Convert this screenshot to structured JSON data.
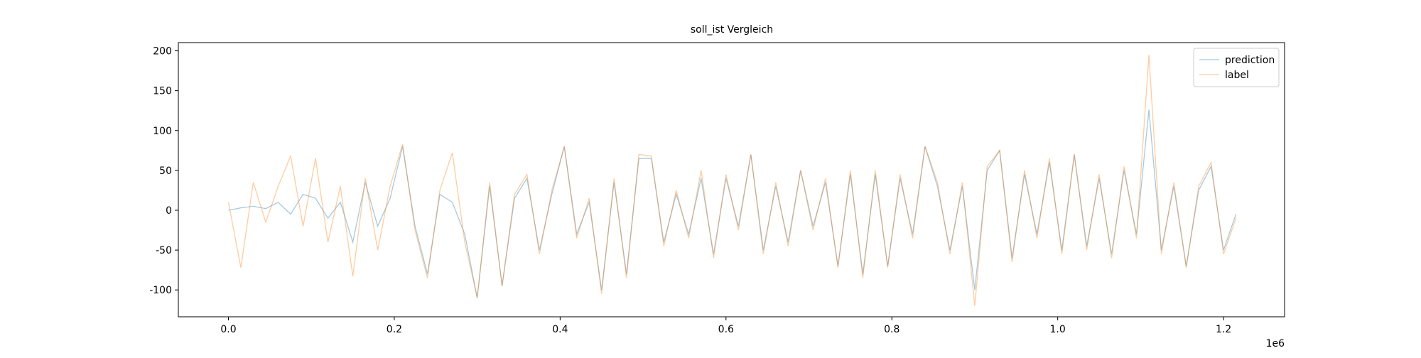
{
  "chart_data": {
    "type": "line",
    "title": "soll_ist Vergleich",
    "title_color": "#ff0000",
    "x_offset_label": "1e6",
    "x": [
      0,
      15000,
      30000,
      45000,
      60000,
      75000,
      90000,
      105000,
      120000,
      135000,
      150000,
      165000,
      180000,
      195000,
      210000,
      225000,
      240000,
      255000,
      270000,
      285000,
      300000,
      315000,
      330000,
      345000,
      360000,
      375000,
      390000,
      405000,
      420000,
      435000,
      450000,
      465000,
      480000,
      495000,
      510000,
      525000,
      540000,
      555000,
      570000,
      585000,
      600000,
      615000,
      630000,
      645000,
      660000,
      675000,
      690000,
      705000,
      720000,
      735000,
      750000,
      765000,
      780000,
      795000,
      810000,
      825000,
      840000,
      855000,
      870000,
      885000,
      900000,
      915000,
      930000,
      945000,
      960000,
      975000,
      990000,
      1005000,
      1020000,
      1035000,
      1050000,
      1065000,
      1080000,
      1095000,
      1110000,
      1125000,
      1140000,
      1155000,
      1170000,
      1185000,
      1200000,
      1215000
    ],
    "series": [
      {
        "name": "prediction",
        "color": "#1f77b4",
        "opacity": 0.4,
        "values": [
          0,
          3,
          5,
          2,
          10,
          -5,
          20,
          15,
          -10,
          10,
          -40,
          35,
          -20,
          15,
          80,
          -20,
          -80,
          20,
          10,
          -30,
          -110,
          30,
          -95,
          15,
          40,
          -50,
          20,
          80,
          -30,
          10,
          -100,
          35,
          -80,
          65,
          65,
          -40,
          20,
          -30,
          40,
          -55,
          40,
          -20,
          70,
          -50,
          30,
          -40,
          50,
          -20,
          35,
          -70,
          45,
          -80,
          45,
          -70,
          40,
          -30,
          80,
          30,
          -50,
          30,
          -100,
          50,
          75,
          -60,
          45,
          -30,
          60,
          -50,
          70,
          -45,
          40,
          -55,
          50,
          -30,
          126,
          -50,
          30,
          -70,
          25,
          55,
          -50,
          -5
        ]
      },
      {
        "name": "label",
        "color": "#ff7f0e",
        "opacity": 0.4,
        "values": [
          10,
          -72,
          35,
          -15,
          30,
          68,
          -20,
          65,
          -40,
          30,
          -83,
          40,
          -50,
          30,
          83,
          -25,
          -85,
          25,
          72,
          -40,
          -110,
          35,
          -95,
          20,
          45,
          -55,
          25,
          80,
          -35,
          15,
          -105,
          40,
          -85,
          70,
          68,
          -45,
          25,
          -35,
          50,
          -60,
          45,
          -25,
          70,
          -55,
          35,
          -45,
          50,
          -25,
          40,
          -72,
          50,
          -85,
          50,
          -72,
          45,
          -35,
          80,
          35,
          -55,
          35,
          -120,
          55,
          75,
          -65,
          50,
          -35,
          65,
          -55,
          70,
          -50,
          45,
          -60,
          55,
          -35,
          195,
          -55,
          35,
          -72,
          30,
          60,
          -55,
          -10
        ]
      }
    ],
    "xlim": [
      -60400,
      1273600
    ],
    "ylim": [
      -133.7,
      210.3
    ],
    "xticks": [
      {
        "value": 0,
        "label": "0.0"
      },
      {
        "value": 200000,
        "label": "0.2"
      },
      {
        "value": 400000,
        "label": "0.4"
      },
      {
        "value": 600000,
        "label": "0.6"
      },
      {
        "value": 800000,
        "label": "0.8"
      },
      {
        "value": 1000000,
        "label": "1.0"
      },
      {
        "value": 1200000,
        "label": "1.2"
      }
    ],
    "yticks": [
      -100,
      -50,
      0,
      50,
      100,
      150,
      200
    ],
    "grid": false,
    "legend": "upper right"
  }
}
